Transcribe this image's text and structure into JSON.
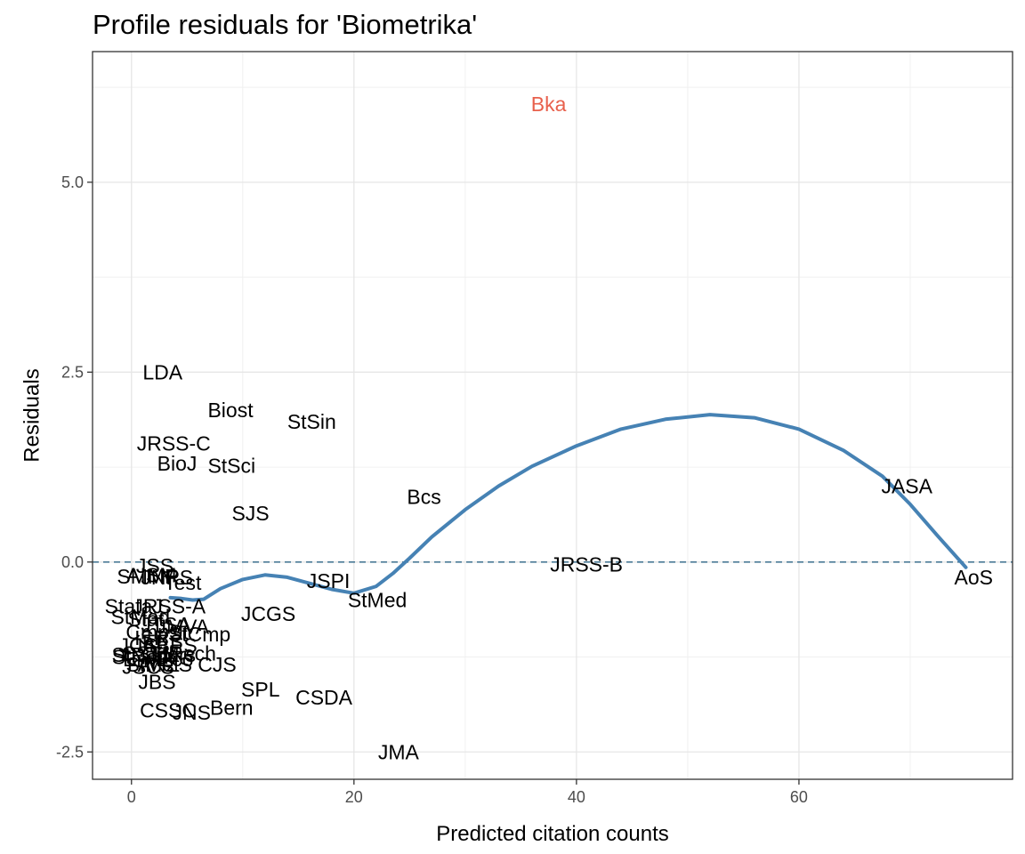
{
  "chart_data": {
    "type": "scatter",
    "title": "Profile residuals for 'Biometrika'",
    "xlabel": "Predicted citation counts",
    "ylabel": "Residuals",
    "xlim": [
      -3.5,
      79.2
    ],
    "ylim": [
      -2.86,
      6.72
    ],
    "x_ticks": [
      0,
      20,
      40,
      60
    ],
    "x_tick_labels": [
      "0",
      "20",
      "40",
      "60"
    ],
    "y_ticks": [
      -2.5,
      0,
      2.5,
      5
    ],
    "y_tick_labels": [
      "-2.5",
      "0.0",
      "2.5",
      "5.0"
    ],
    "grid": true,
    "reference_line": {
      "y": 0,
      "style": "dashed",
      "color": "#4a7a96"
    },
    "label_color": "#000000",
    "highlight_color": "#e8604c",
    "smooth_color": "#4682b4",
    "points": [
      {
        "label": "Bka",
        "x": 37.5,
        "y": 6.03,
        "highlight": true
      },
      {
        "label": "LDA",
        "x": 2.8,
        "y": 2.5
      },
      {
        "label": "Biost",
        "x": 8.9,
        "y": 2.0
      },
      {
        "label": "StSin",
        "x": 16.2,
        "y": 1.85
      },
      {
        "label": "JRSS-C",
        "x": 3.8,
        "y": 1.56
      },
      {
        "label": "BioJ",
        "x": 4.1,
        "y": 1.3
      },
      {
        "label": "StSci",
        "x": 9.0,
        "y": 1.27
      },
      {
        "label": "SJS",
        "x": 10.7,
        "y": 0.64
      },
      {
        "label": "Bcs",
        "x": 26.3,
        "y": 0.86
      },
      {
        "label": "JASA",
        "x": 69.7,
        "y": 1.0
      },
      {
        "label": "JRSS-B",
        "x": 40.9,
        "y": -0.03
      },
      {
        "label": "AoS",
        "x": 75.7,
        "y": -0.2
      },
      {
        "label": "JSPI",
        "x": 17.7,
        "y": -0.25
      },
      {
        "label": "StMed",
        "x": 22.1,
        "y": -0.5
      },
      {
        "label": "JCGS",
        "x": 12.3,
        "y": -0.68
      },
      {
        "label": "JSS",
        "x": 2.1,
        "y": -0.05
      },
      {
        "label": "AISM",
        "x": 1.8,
        "y": -0.17
      },
      {
        "label": "SMMR",
        "x": 1.5,
        "y": -0.19
      },
      {
        "label": "JNPS",
        "x": 3.2,
        "y": -0.2
      },
      {
        "label": "Test",
        "x": 4.6,
        "y": -0.27
      },
      {
        "label": "StataJ",
        "x": 0.2,
        "y": -0.58
      },
      {
        "label": "JRSS-A",
        "x": 3.4,
        "y": -0.58
      },
      {
        "label": "StMod",
        "x": 0.8,
        "y": -0.72
      },
      {
        "label": "Stat",
        "x": 1.3,
        "y": -0.75
      },
      {
        "label": "JTSA",
        "x": 3.1,
        "y": -0.82
      },
      {
        "label": "JMVA",
        "x": 4.6,
        "y": -0.85
      },
      {
        "label": "CmpSt",
        "x": 2.3,
        "y": -0.92
      },
      {
        "label": "StCmp",
        "x": 6.1,
        "y": -0.95
      },
      {
        "label": "ISR",
        "x": 1.8,
        "y": -1.0
      },
      {
        "label": "EES",
        "x": 2.8,
        "y": -1.05
      },
      {
        "label": "JABES",
        "x": 3.0,
        "y": -1.1
      },
      {
        "label": "JCS",
        "x": 0.6,
        "y": -1.1
      },
      {
        "label": "CSTM",
        "x": 1.7,
        "y": -1.2
      },
      {
        "label": "StNed",
        "x": 0.8,
        "y": -1.25
      },
      {
        "label": "StPapers",
        "x": 2.0,
        "y": -1.22
      },
      {
        "label": "EnvEco",
        "x": 2.4,
        "y": -1.28
      },
      {
        "label": "StRech",
        "x": 4.6,
        "y": -1.2
      },
      {
        "label": "StMet",
        "x": 1.9,
        "y": -1.35
      },
      {
        "label": "JSCS",
        "x": 1.5,
        "y": -1.38
      },
      {
        "label": "ANZS",
        "x": 3.0,
        "y": -1.35
      },
      {
        "label": "CJS",
        "x": 7.7,
        "y": -1.35
      },
      {
        "label": "JBS",
        "x": 2.3,
        "y": -1.58
      },
      {
        "label": "SPL",
        "x": 11.6,
        "y": -1.68
      },
      {
        "label": "CSDA",
        "x": 17.3,
        "y": -1.78
      },
      {
        "label": "CSSC",
        "x": 3.3,
        "y": -1.95
      },
      {
        "label": "JNS",
        "x": 5.4,
        "y": -1.98
      },
      {
        "label": "Bern",
        "x": 9.0,
        "y": -1.92
      },
      {
        "label": "JMA",
        "x": 24.0,
        "y": -2.5
      }
    ],
    "smooth": {
      "x": [
        3.5,
        4.5,
        5.5,
        6.5,
        8,
        10,
        12,
        14,
        16,
        18,
        20,
        22,
        23.5,
        25,
        27,
        30,
        33,
        36,
        40,
        44,
        48,
        52,
        56,
        60,
        64,
        67.5,
        70,
        72.5,
        75
      ],
      "y": [
        -0.47,
        -0.48,
        -0.5,
        -0.49,
        -0.35,
        -0.23,
        -0.17,
        -0.2,
        -0.28,
        -0.36,
        -0.41,
        -0.32,
        -0.15,
        0.05,
        0.33,
        0.69,
        1.0,
        1.26,
        1.53,
        1.75,
        1.88,
        1.94,
        1.9,
        1.75,
        1.47,
        1.13,
        0.76,
        0.34,
        -0.07
      ]
    }
  }
}
